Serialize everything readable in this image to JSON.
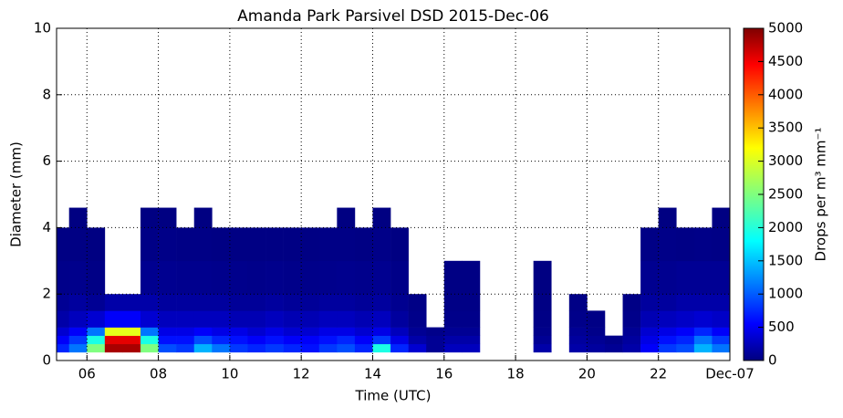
{
  "chart_data": {
    "type": "heatmap",
    "title": "Amanda Park Parsivel DSD 2015-Dec-06",
    "xlabel": "Time (UTC)",
    "ylabel": "Diameter (mm)",
    "colorbar_label": "Drops per m³ mm⁻¹",
    "colormap": "jet",
    "grid": true,
    "xlim": [
      5.15,
      24
    ],
    "ylim": [
      0,
      10
    ],
    "xticks": [
      {
        "value": 6,
        "label": "06"
      },
      {
        "value": 8,
        "label": "08"
      },
      10,
      12,
      14,
      16,
      18,
      20,
      22,
      {
        "value": 24,
        "label": "Dec-07"
      }
    ],
    "yticks": [
      0,
      2,
      4,
      6,
      8,
      10
    ],
    "clim": [
      0,
      5000
    ],
    "cticks": [
      0,
      500,
      1000,
      1500,
      2000,
      2500,
      3000,
      3500,
      4000,
      4500,
      5000
    ],
    "x_edges": [
      5.15,
      5.5,
      6,
      6.5,
      7,
      7.5,
      8,
      8.5,
      9,
      9.5,
      10,
      10.5,
      11,
      11.5,
      12,
      12.5,
      13,
      13.5,
      14,
      14.5,
      15,
      15.5,
      16,
      16.5,
      17,
      17.5,
      18,
      18.5,
      19,
      19.5,
      20,
      20.5,
      21,
      21.5,
      22,
      22.5,
      23,
      23.5,
      24
    ],
    "y_edges": [
      0.25,
      0.5,
      0.75,
      1.0,
      1.5,
      2.0,
      3.0,
      4.0,
      4.6
    ],
    "z": [
      [
        800,
        1200,
        2500,
        4800,
        4800,
        2500,
        1000,
        900,
        1500,
        1200,
        900,
        800,
        900,
        800,
        700,
        900,
        1000,
        800,
        2000,
        800,
        400,
        100,
        300,
        300,
        null,
        null,
        null,
        200,
        null,
        200,
        150,
        100,
        200,
        600,
        900,
        1000,
        1500,
        1200
      ],
      [
        600,
        900,
        2000,
        4500,
        4500,
        2000,
        700,
        700,
        1000,
        800,
        700,
        600,
        700,
        600,
        600,
        700,
        800,
        600,
        900,
        500,
        200,
        100,
        200,
        200,
        null,
        null,
        null,
        100,
        null,
        150,
        100,
        50,
        150,
        500,
        700,
        800,
        1200,
        900
      ],
      [
        400,
        600,
        1200,
        3000,
        3000,
        1200,
        500,
        500,
        600,
        500,
        500,
        400,
        500,
        400,
        400,
        500,
        500,
        400,
        500,
        300,
        100,
        50,
        100,
        100,
        null,
        null,
        null,
        50,
        null,
        100,
        50,
        null,
        100,
        400,
        500,
        600,
        800,
        600
      ],
      [
        200,
        300,
        400,
        600,
        600,
        400,
        300,
        300,
        300,
        300,
        250,
        250,
        300,
        250,
        250,
        300,
        300,
        250,
        300,
        150,
        50,
        null,
        50,
        50,
        null,
        null,
        null,
        30,
        null,
        50,
        30,
        null,
        50,
        250,
        300,
        350,
        400,
        350
      ],
      [
        100,
        150,
        100,
        200,
        200,
        200,
        150,
        150,
        150,
        150,
        120,
        120,
        150,
        120,
        120,
        150,
        150,
        120,
        150,
        80,
        30,
        null,
        30,
        30,
        null,
        null,
        null,
        20,
        null,
        30,
        null,
        null,
        30,
        150,
        150,
        200,
        200,
        200
      ],
      [
        50,
        60,
        30,
        null,
        null,
        80,
        80,
        70,
        70,
        60,
        60,
        50,
        60,
        50,
        50,
        60,
        70,
        60,
        80,
        40,
        null,
        null,
        20,
        20,
        null,
        null,
        null,
        10,
        null,
        null,
        null,
        null,
        null,
        80,
        80,
        100,
        100,
        100
      ],
      [
        20,
        20,
        10,
        null,
        null,
        30,
        40,
        30,
        30,
        20,
        20,
        20,
        20,
        20,
        20,
        30,
        30,
        20,
        40,
        10,
        null,
        null,
        null,
        null,
        null,
        null,
        null,
        null,
        null,
        null,
        null,
        null,
        null,
        30,
        40,
        30,
        40,
        30
      ],
      [
        null,
        10,
        null,
        null,
        null,
        10,
        10,
        null,
        10,
        null,
        null,
        null,
        null,
        null,
        null,
        null,
        10,
        null,
        10,
        null,
        null,
        null,
        null,
        null,
        null,
        null,
        null,
        null,
        null,
        null,
        null,
        null,
        null,
        null,
        10,
        null,
        null,
        10
      ]
    ]
  }
}
